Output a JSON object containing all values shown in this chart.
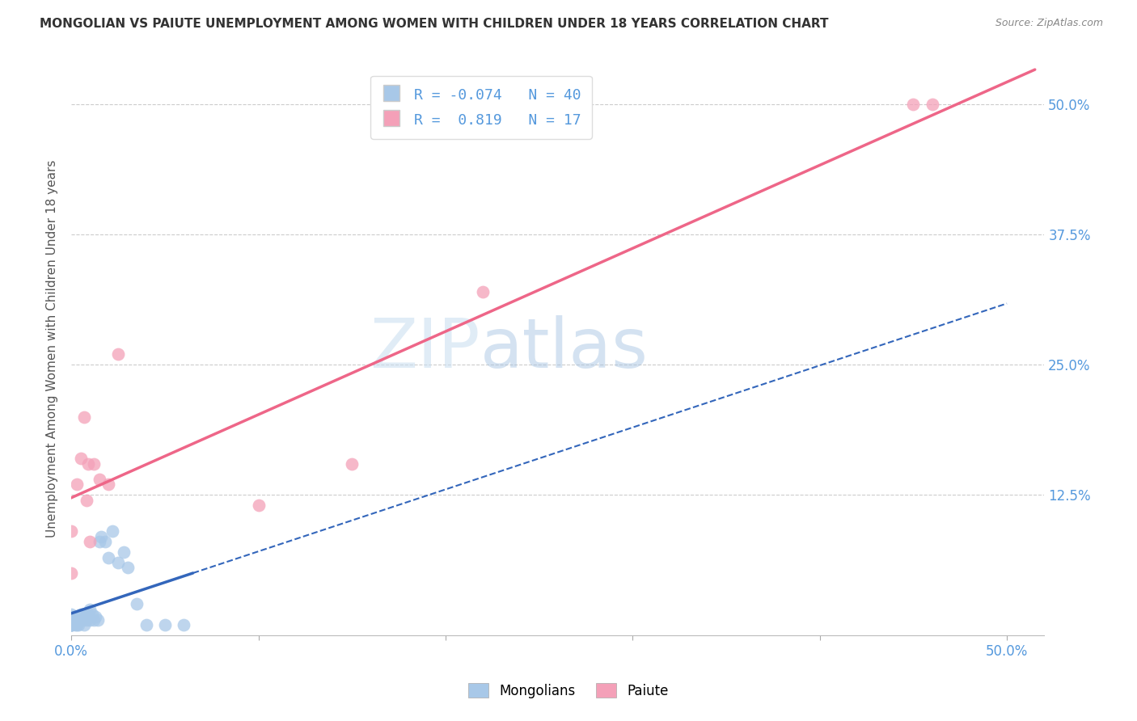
{
  "title": "MONGOLIAN VS PAIUTE UNEMPLOYMENT AMONG WOMEN WITH CHILDREN UNDER 18 YEARS CORRELATION CHART",
  "source": "Source: ZipAtlas.com",
  "ylabel": "Unemployment Among Women with Children Under 18 years",
  "watermark_zip": "ZIP",
  "watermark_atlas": "atlas",
  "xlim": [
    0.0,
    0.52
  ],
  "ylim": [
    -0.01,
    0.54
  ],
  "r_mongolian": -0.074,
  "n_mongolian": 40,
  "r_paiute": 0.819,
  "n_paiute": 17,
  "mongolian_color": "#a8c8e8",
  "paiute_color": "#f4a0b8",
  "mongolian_line_color": "#3366bb",
  "paiute_line_color": "#ee6688",
  "legend_box_color": "#dddddd",
  "tick_color": "#5599dd",
  "title_color": "#333333",
  "source_color": "#888888",
  "grid_color": "#cccccc",
  "mongolian_x": [
    0.0,
    0.0,
    0.0,
    0.0,
    0.0,
    0.0,
    0.0,
    0.0,
    0.002,
    0.002,
    0.003,
    0.003,
    0.004,
    0.004,
    0.005,
    0.005,
    0.006,
    0.006,
    0.007,
    0.008,
    0.008,
    0.009,
    0.01,
    0.01,
    0.011,
    0.012,
    0.013,
    0.014,
    0.015,
    0.016,
    0.018,
    0.02,
    0.022,
    0.025,
    0.028,
    0.03,
    0.035,
    0.04,
    0.05,
    0.06
  ],
  "mongolian_y": [
    0.0,
    0.0,
    0.0,
    0.0,
    0.0,
    0.005,
    0.008,
    0.01,
    0.0,
    0.005,
    0.0,
    0.005,
    0.0,
    0.005,
    0.005,
    0.01,
    0.005,
    0.01,
    0.0,
    0.005,
    0.01,
    0.01,
    0.005,
    0.015,
    0.01,
    0.005,
    0.008,
    0.005,
    0.08,
    0.085,
    0.08,
    0.065,
    0.09,
    0.06,
    0.07,
    0.055,
    0.02,
    0.0,
    0.0,
    0.0
  ],
  "paiute_x": [
    0.0,
    0.0,
    0.003,
    0.005,
    0.007,
    0.008,
    0.009,
    0.01,
    0.012,
    0.015,
    0.02,
    0.025,
    0.1,
    0.15,
    0.22,
    0.45,
    0.46
  ],
  "paiute_y": [
    0.05,
    0.09,
    0.135,
    0.16,
    0.2,
    0.12,
    0.155,
    0.08,
    0.155,
    0.14,
    0.135,
    0.26,
    0.115,
    0.155,
    0.32,
    0.5,
    0.5
  ]
}
